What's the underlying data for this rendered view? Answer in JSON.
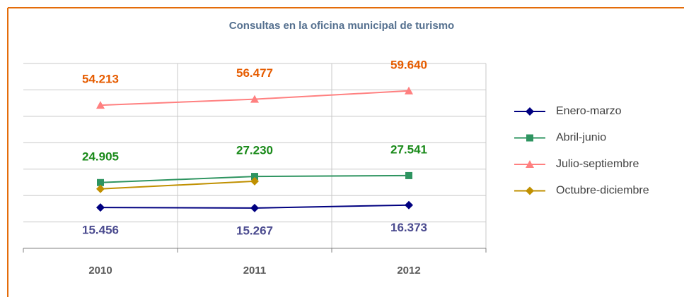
{
  "chart_data": {
    "type": "line",
    "title": "Consultas en la oficina municipal de turismo",
    "categories": [
      "2010",
      "2011",
      "2012"
    ],
    "ylim": [
      0,
      70000
    ],
    "yticks": [
      0,
      10000,
      20000,
      30000,
      40000,
      50000,
      60000,
      70000
    ],
    "grid": true,
    "legend": "right",
    "series": [
      {
        "name": "Enero-marzo",
        "color": "#000080",
        "marker": "diamond",
        "label_color": "#4b4b8f",
        "label_position": "below",
        "values": [
          15456,
          15267,
          16373
        ],
        "value_labels": [
          "15.456",
          "15.267",
          "16.373"
        ]
      },
      {
        "name": "Abril-junio",
        "color": "#2e9460",
        "marker": "square",
        "label_color": "#1a8a1a",
        "label_position": "above",
        "values": [
          24905,
          27230,
          27541
        ],
        "value_labels": [
          "24.905",
          "27.230",
          "27.541"
        ]
      },
      {
        "name": "Julio-septiembre",
        "color": "#ff8080",
        "marker": "triangle",
        "label_color": "#e65c00",
        "label_position": "above",
        "values": [
          54213,
          56477,
          59640
        ],
        "value_labels": [
          "54.213",
          "56.477",
          "59.640"
        ]
      },
      {
        "name": "Octubre-diciembre",
        "color": "#c09000",
        "marker": "diamond",
        "values": [
          22500,
          25400,
          null
        ]
      }
    ]
  }
}
